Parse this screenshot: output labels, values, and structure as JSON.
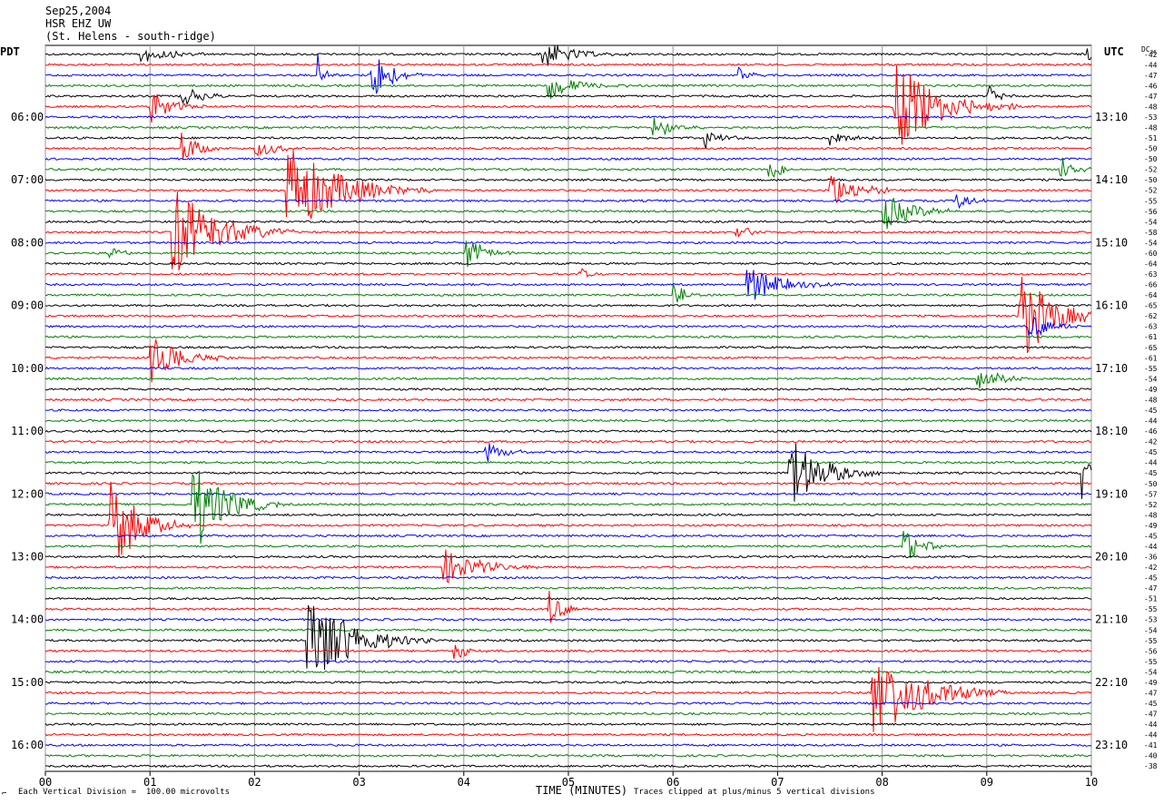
{
  "header": {
    "date": "Sep25,2004",
    "station": "HSR EHZ UW",
    "location": "(St. Helens - south-ridge)"
  },
  "left_tz": "PDT",
  "right_tz": "UTC",
  "dc_label": "DC",
  "dc_sub": "36",
  "footer": {
    "scale": "Each Vertical Division =  100.00 microvolts",
    "xtitle": "TIME (MINUTES)",
    "clip": "Traces clipped at plus/minus 5 vertical divisions",
    "corner_mark": "⌐"
  },
  "chart_data": {
    "type": "line",
    "x_ticks": [
      "00",
      "01",
      "02",
      "03",
      "04",
      "05",
      "06",
      "07",
      "08",
      "09",
      "10"
    ],
    "xlim": [
      0,
      10
    ],
    "trace_colors": [
      "#000000",
      "#ff0000",
      "#0000ff",
      "#008000"
    ],
    "left_hour_labels": [
      {
        "label": "06:00",
        "row": 6
      },
      {
        "label": "07:00",
        "row": 12
      },
      {
        "label": "08:00",
        "row": 18
      },
      {
        "label": "09:00",
        "row": 24
      },
      {
        "label": "10:00",
        "row": 30
      },
      {
        "label": "11:00",
        "row": 36
      },
      {
        "label": "12:00",
        "row": 42
      },
      {
        "label": "13:00",
        "row": 48
      },
      {
        "label": "14:00",
        "row": 54
      },
      {
        "label": "15:00",
        "row": 60
      },
      {
        "label": "16:00",
        "row": 66
      }
    ],
    "right_hour_labels": [
      {
        "label": "13:10",
        "row": 6
      },
      {
        "label": "14:10",
        "row": 12
      },
      {
        "label": "15:10",
        "row": 18
      },
      {
        "label": "16:10",
        "row": 24
      },
      {
        "label": "17:10",
        "row": 30
      },
      {
        "label": "18:10",
        "row": 36
      },
      {
        "label": "19:10",
        "row": 42
      },
      {
        "label": "20:10",
        "row": 48
      },
      {
        "label": "21:10",
        "row": 54
      },
      {
        "label": "22:10",
        "row": 60
      },
      {
        "label": "23:10",
        "row": 66
      }
    ],
    "dc_offsets": [
      "-42",
      "-44",
      "-47",
      "-46",
      "-47",
      "-48",
      "-53",
      "-48",
      "-51",
      "-50",
      "-50",
      "-52",
      "-50",
      "-52",
      "-55",
      "-56",
      "-54",
      "-58",
      "-54",
      "-60",
      "-64",
      "-63",
      "-66",
      "-64",
      "-65",
      "-62",
      "-63",
      "-61",
      "-65",
      "-61",
      "-55",
      "-54",
      "-49",
      "-48",
      "-45",
      "-44",
      "-46",
      "-42",
      "-45",
      "-44",
      "-45",
      "-50",
      "-57",
      "-52",
      "-48",
      "-49",
      "-45",
      "-44",
      "-36",
      "-42",
      "-45",
      "-47",
      "-51",
      "-55",
      "-53",
      "-54",
      "-55",
      "-56",
      "-55",
      "-54",
      "-49",
      "-47",
      "-45",
      "-47",
      "-44",
      "-44",
      "-41",
      "-40",
      "-38"
    ],
    "events": [
      {
        "row": 0,
        "minute": 0.9,
        "amp": 1.0,
        "dur": 0.8
      },
      {
        "row": 0,
        "minute": 4.7,
        "amp": 1.6,
        "dur": 0.9
      },
      {
        "row": 0,
        "minute": 9.95,
        "amp": 1.5,
        "dur": 0.1
      },
      {
        "row": 2,
        "minute": 2.6,
        "amp": 2.2,
        "dur": 0.2
      },
      {
        "row": 2,
        "minute": 3.1,
        "amp": 3.5,
        "dur": 0.5
      },
      {
        "row": 2,
        "minute": 6.6,
        "amp": 1.0,
        "dur": 0.3
      },
      {
        "row": 3,
        "minute": 4.8,
        "amp": 1.4,
        "dur": 0.8
      },
      {
        "row": 4,
        "minute": 1.3,
        "amp": 1.0,
        "dur": 0.6
      },
      {
        "row": 4,
        "minute": 9.0,
        "amp": 1.2,
        "dur": 0.3
      },
      {
        "row": 5,
        "minute": 1.0,
        "amp": 1.6,
        "dur": 0.6
      },
      {
        "row": 5,
        "minute": 8.1,
        "amp": 5.0,
        "dur": 1.2
      },
      {
        "row": 7,
        "minute": 5.8,
        "amp": 1.4,
        "dur": 0.5
      },
      {
        "row": 8,
        "minute": 6.3,
        "amp": 1.2,
        "dur": 0.4
      },
      {
        "row": 8,
        "minute": 7.5,
        "amp": 1.0,
        "dur": 0.5
      },
      {
        "row": 9,
        "minute": 1.3,
        "amp": 2.0,
        "dur": 0.4
      },
      {
        "row": 9,
        "minute": 2.0,
        "amp": 1.2,
        "dur": 0.5
      },
      {
        "row": 11,
        "minute": 6.9,
        "amp": 1.5,
        "dur": 0.4
      },
      {
        "row": 11,
        "minute": 9.7,
        "amp": 2.0,
        "dur": 0.4
      },
      {
        "row": 13,
        "minute": 2.3,
        "amp": 5.0,
        "dur": 1.4
      },
      {
        "row": 13,
        "minute": 7.5,
        "amp": 1.8,
        "dur": 0.8
      },
      {
        "row": 14,
        "minute": 8.7,
        "amp": 1.0,
        "dur": 0.4
      },
      {
        "row": 15,
        "minute": 8.0,
        "amp": 2.0,
        "dur": 0.8
      },
      {
        "row": 17,
        "minute": 1.2,
        "amp": 5.0,
        "dur": 1.2
      },
      {
        "row": 17,
        "minute": 6.6,
        "amp": 1.0,
        "dur": 0.4
      },
      {
        "row": 19,
        "minute": 0.6,
        "amp": 1.0,
        "dur": 0.3
      },
      {
        "row": 19,
        "minute": 4.0,
        "amp": 2.0,
        "dur": 0.5
      },
      {
        "row": 21,
        "minute": 5.1,
        "amp": 0.8,
        "dur": 0.3
      },
      {
        "row": 22,
        "minute": 6.7,
        "amp": 2.0,
        "dur": 0.9
      },
      {
        "row": 23,
        "minute": 6.0,
        "amp": 2.0,
        "dur": 0.3
      },
      {
        "row": 25,
        "minute": 9.3,
        "amp": 5.0,
        "dur": 0.9
      },
      {
        "row": 26,
        "minute": 9.4,
        "amp": 1.4,
        "dur": 0.6
      },
      {
        "row": 29,
        "minute": 1.0,
        "amp": 2.5,
        "dur": 0.8
      },
      {
        "row": 31,
        "minute": 8.9,
        "amp": 1.8,
        "dur": 0.5
      },
      {
        "row": 38,
        "minute": 4.2,
        "amp": 1.2,
        "dur": 0.5
      },
      {
        "row": 40,
        "minute": 7.1,
        "amp": 3.5,
        "dur": 1.0
      },
      {
        "row": 40,
        "minute": 9.9,
        "amp": 3.0,
        "dur": 0.2
      },
      {
        "row": 43,
        "minute": 1.4,
        "amp": 5.0,
        "dur": 0.9
      },
      {
        "row": 45,
        "minute": 0.6,
        "amp": 5.0,
        "dur": 0.8
      },
      {
        "row": 47,
        "minute": 8.2,
        "amp": 1.8,
        "dur": 0.5
      },
      {
        "row": 49,
        "minute": 3.8,
        "amp": 1.8,
        "dur": 1.0
      },
      {
        "row": 53,
        "minute": 4.8,
        "amp": 2.0,
        "dur": 0.4
      },
      {
        "row": 56,
        "minute": 2.5,
        "amp": 5.0,
        "dur": 1.2
      },
      {
        "row": 57,
        "minute": 3.9,
        "amp": 1.0,
        "dur": 0.4
      },
      {
        "row": 61,
        "minute": 7.9,
        "amp": 5.0,
        "dur": 1.3
      }
    ]
  }
}
